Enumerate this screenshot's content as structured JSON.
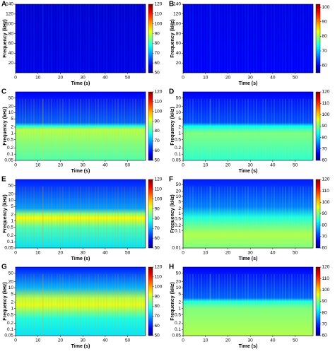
{
  "chart_data": [
    {
      "type": "spectrogram",
      "label": "A",
      "xlabel": "Time (s)",
      "ylabel": "Frequency (kHz)",
      "xlim": [
        0,
        58
      ],
      "xticks": [
        0,
        10,
        20,
        30,
        40,
        50
      ],
      "ylim": [
        0,
        140
      ],
      "yticks": [
        20,
        40,
        60,
        80,
        100,
        120,
        140
      ],
      "log_y": false,
      "clim": [
        50,
        120
      ],
      "cticks": [
        50,
        60,
        70,
        80,
        90,
        100,
        110,
        120
      ]
    },
    {
      "type": "spectrogram",
      "label": "B",
      "xlabel": "Time (s)",
      "ylabel": "Frequency (kHz)",
      "xlim": [
        0,
        58
      ],
      "xticks": [
        0,
        10,
        20,
        30,
        40,
        50
      ],
      "ylim": [
        0,
        140
      ],
      "yticks": [
        20,
        40,
        60,
        80,
        100,
        120,
        140
      ],
      "log_y": false,
      "clim": [
        55,
        102
      ],
      "cticks": [
        60,
        70,
        80,
        90,
        100
      ]
    },
    {
      "type": "spectrogram",
      "label": "C",
      "xlabel": "Time (s)",
      "ylabel": "Frequency (kHz)",
      "xlim": [
        0,
        58
      ],
      "xticks": [
        0,
        10,
        20,
        30,
        40,
        50
      ],
      "ylim": [
        0.05,
        100
      ],
      "yticks": [
        0.05,
        0.1,
        0.2,
        0.5,
        1,
        2,
        5,
        10,
        20,
        50
      ],
      "log_y": true,
      "clim": [
        50,
        120
      ],
      "cticks": [
        50,
        60,
        70,
        80,
        90,
        100,
        110,
        120
      ]
    },
    {
      "type": "spectrogram",
      "label": "D",
      "xlabel": "Time (s)",
      "ylabel": "Frequency (kHz)",
      "xlim": [
        0,
        58
      ],
      "xticks": [
        0,
        10,
        20,
        30,
        40,
        50
      ],
      "ylim": [
        0.05,
        100
      ],
      "yticks": [
        0.05,
        0.1,
        0.2,
        0.5,
        1,
        2,
        5,
        10,
        20,
        50
      ],
      "log_y": true,
      "clim": [
        60,
        120
      ],
      "cticks": [
        60,
        70,
        80,
        90,
        100,
        110,
        120
      ]
    },
    {
      "type": "spectrogram",
      "label": "E",
      "xlabel": "Time (s)",
      "ylabel": "Frequency (kHz)",
      "xlim": [
        0,
        58
      ],
      "xticks": [
        0,
        10,
        20,
        30,
        40,
        50
      ],
      "ylim": [
        0.05,
        100
      ],
      "yticks": [
        0.05,
        0.1,
        0.2,
        0.5,
        1,
        2,
        5,
        10,
        20,
        50
      ],
      "log_y": true,
      "clim": [
        50,
        120
      ],
      "cticks": [
        50,
        60,
        70,
        80,
        90,
        100,
        110,
        120
      ]
    },
    {
      "type": "spectrogram",
      "label": "F",
      "xlabel": "Time (s)",
      "ylabel": "Frequency (kHz)",
      "xlim": [
        0,
        58
      ],
      "xticks": [
        0,
        10,
        20,
        30,
        40,
        50
      ],
      "ylim": [
        0.01,
        100
      ],
      "yticks": [
        0.01,
        0.1,
        0.2,
        0.5,
        1,
        2,
        5,
        10,
        20,
        50
      ],
      "log_y": true,
      "clim": [
        60,
        120
      ],
      "cticks": [
        60,
        70,
        80,
        90,
        100,
        110,
        120
      ]
    },
    {
      "type": "spectrogram",
      "label": "G",
      "xlabel": "Time (s)",
      "ylabel": "Frequency (kHz)",
      "xlim": [
        0,
        58
      ],
      "xticks": [
        0,
        10,
        20,
        30,
        40,
        50
      ],
      "ylim": [
        0.05,
        100
      ],
      "yticks": [
        0.05,
        0.1,
        0.2,
        0.5,
        1,
        2,
        5,
        10,
        20,
        50
      ],
      "log_y": true,
      "clim": [
        50,
        120
      ],
      "cticks": [
        50,
        60,
        70,
        80,
        90,
        100,
        110,
        120
      ]
    },
    {
      "type": "spectrogram",
      "label": "H",
      "xlabel": "Time (s)",
      "ylabel": "Frequency (kHz)",
      "xlim": [
        0,
        58
      ],
      "xticks": [
        0,
        10,
        20,
        30,
        40,
        50
      ],
      "ylim": [
        0.05,
        100
      ],
      "yticks": [
        0.05,
        0.1,
        0.2,
        0.5,
        1,
        2,
        5,
        10,
        20,
        50
      ],
      "log_y": true,
      "clim": [
        60,
        120
      ],
      "cticks": [
        60,
        70,
        80,
        90,
        100,
        110,
        120
      ]
    }
  ]
}
